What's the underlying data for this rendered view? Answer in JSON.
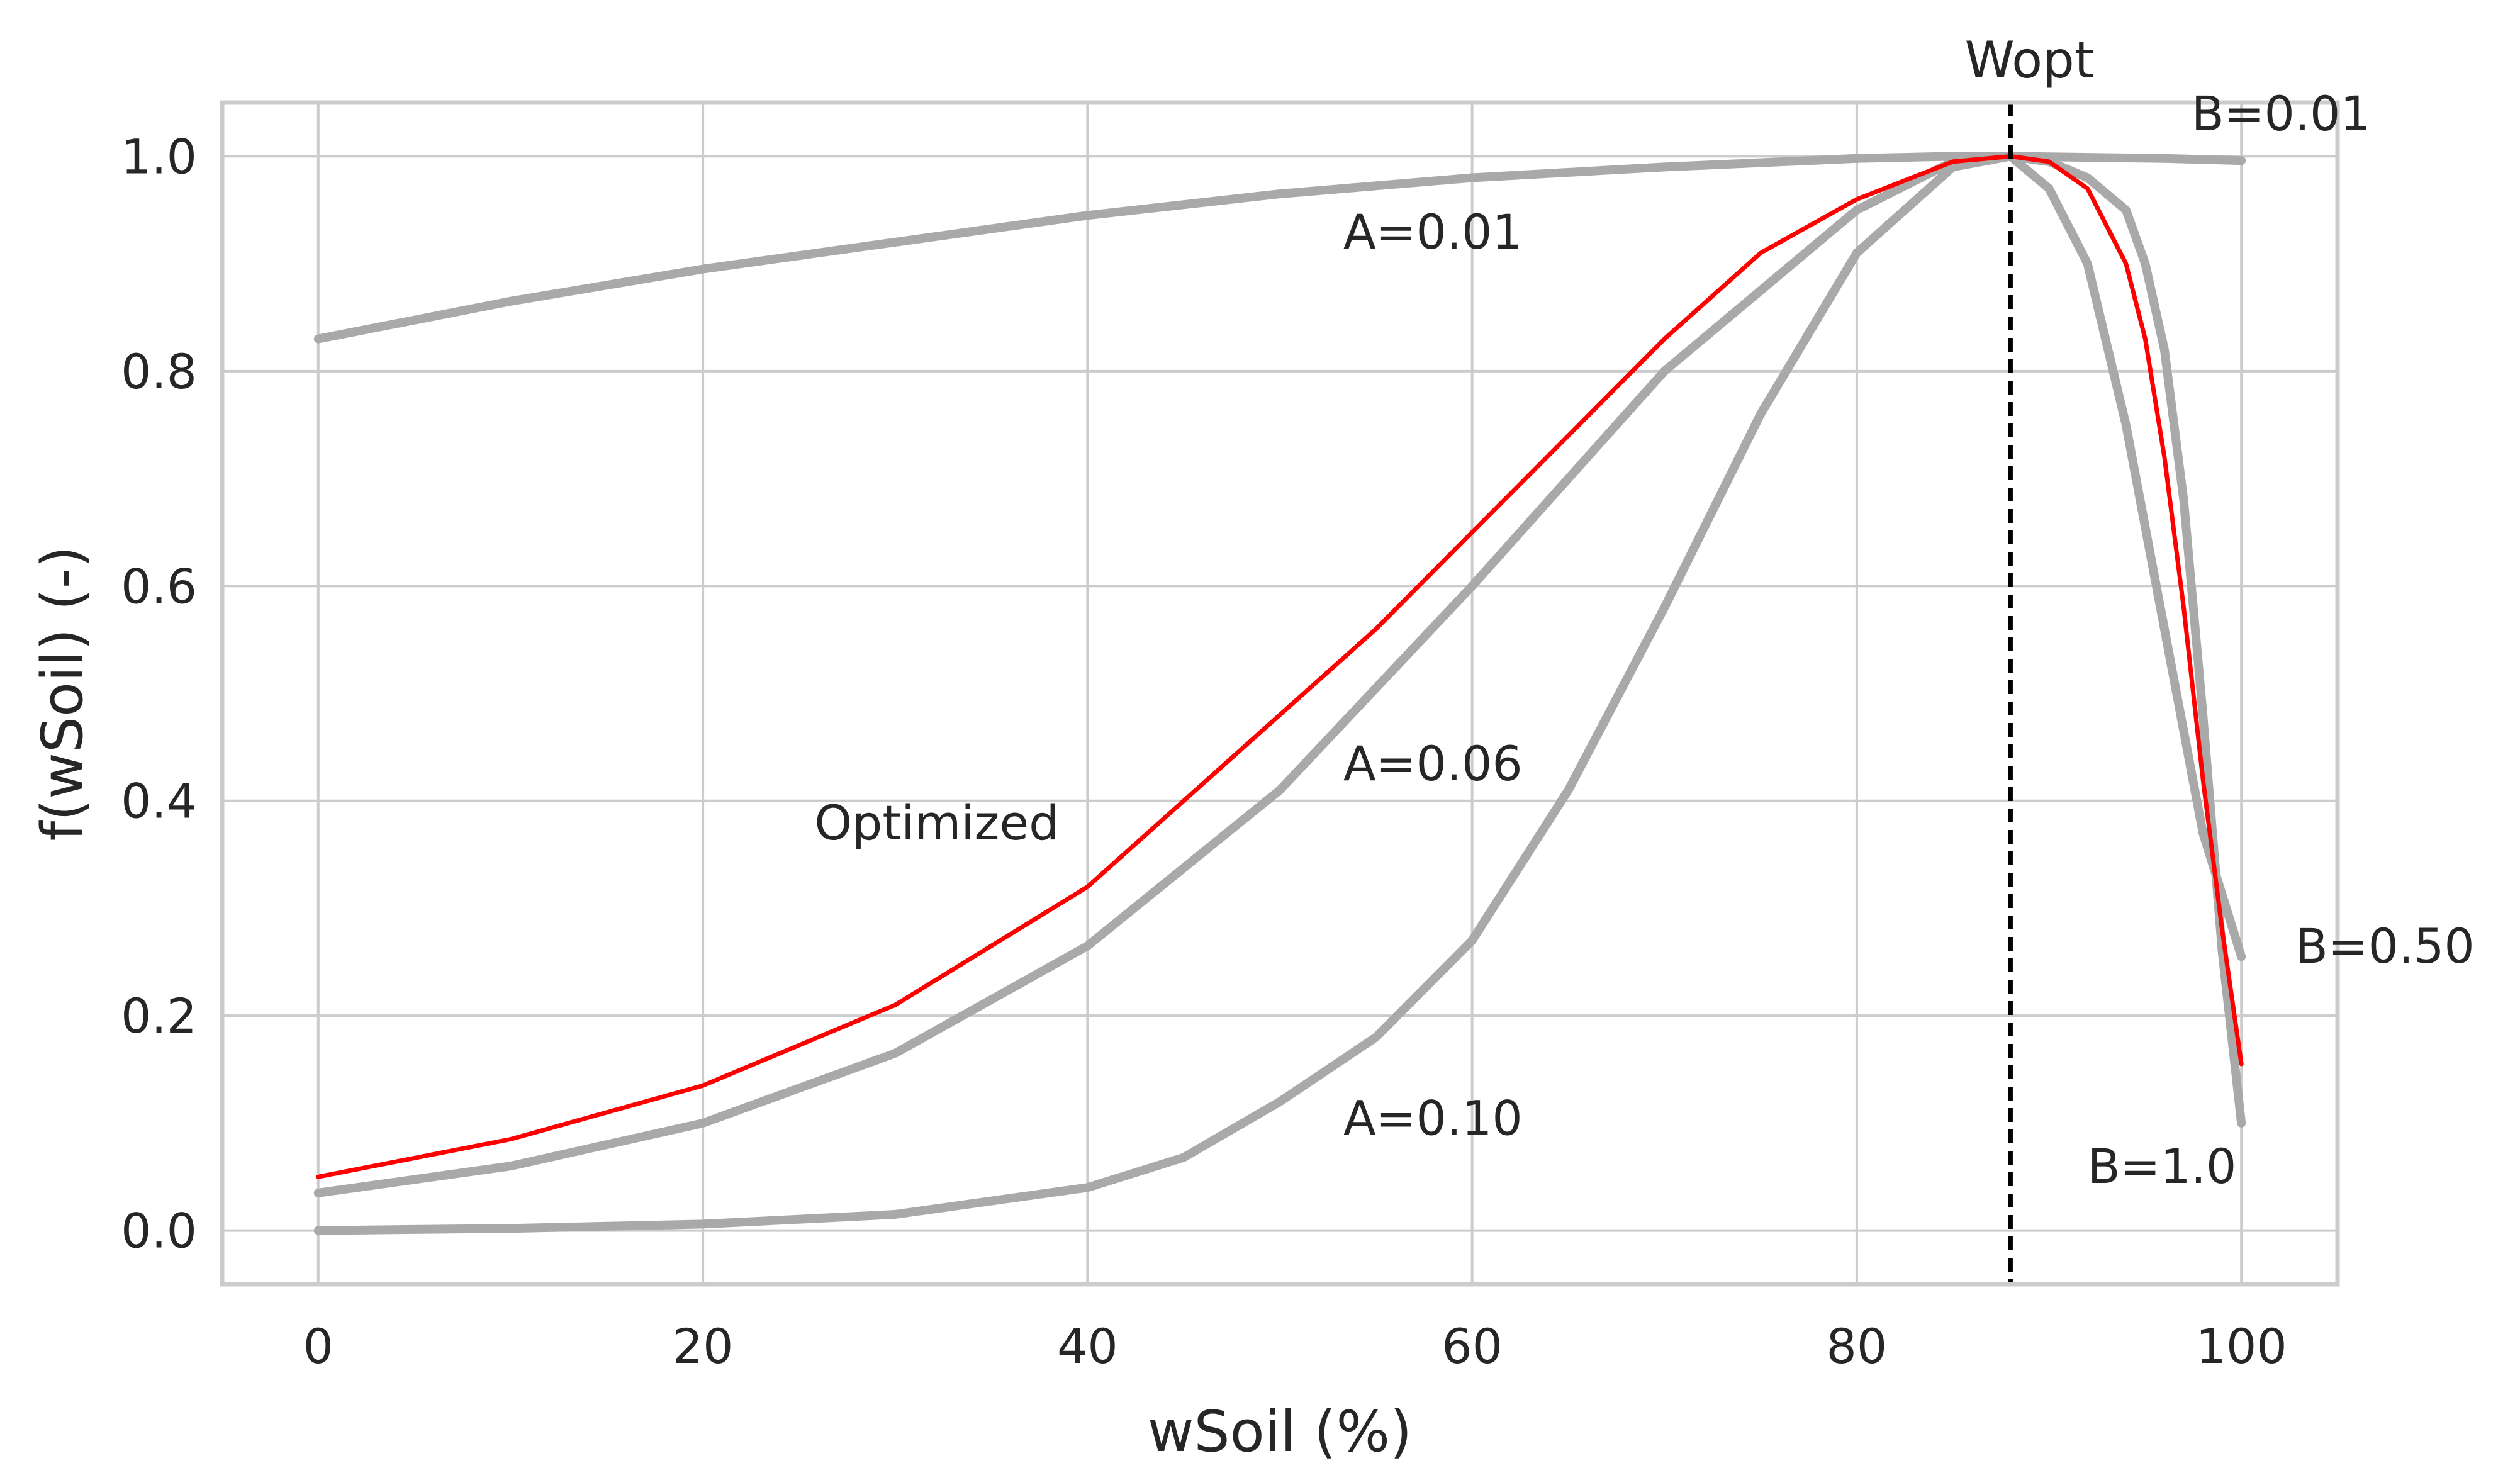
{
  "chart_data": {
    "type": "line",
    "xlabel": "wSoil (%)",
    "ylabel": "f(wSoil) (-)",
    "xlim": [
      -5,
      105
    ],
    "ylim": [
      -0.05,
      1.05
    ],
    "xticks": [
      0,
      20,
      40,
      60,
      80,
      100
    ],
    "yticks": [
      0.0,
      0.2,
      0.4,
      0.6,
      0.8,
      1.0
    ],
    "xtick_labels": [
      "0",
      "20",
      "40",
      "60",
      "80",
      "100"
    ],
    "ytick_labels": [
      "0.0",
      "0.2",
      "0.4",
      "0.6",
      "0.8",
      "1.0"
    ],
    "grid": true,
    "wopt": 88,
    "wopt_label": "Wopt",
    "series": [
      {
        "color": "#a9a9a9",
        "x": [
          0,
          10,
          20,
          30,
          40,
          50,
          60,
          70,
          80,
          85,
          88,
          92,
          96,
          100
        ],
        "y": [
          0.83,
          0.865,
          0.895,
          0.92,
          0.945,
          0.965,
          0.98,
          0.99,
          0.998,
          1.0,
          1.0,
          0.999,
          0.998,
          0.996
        ]
      },
      {
        "color": "#a9a9a9",
        "x": [
          0,
          10,
          20,
          30,
          40,
          50,
          60,
          70,
          80,
          85,
          88,
          90,
          92,
          94,
          96,
          98,
          100
        ],
        "y": [
          0.035,
          0.06,
          0.1,
          0.165,
          0.265,
          0.41,
          0.6,
          0.8,
          0.95,
          0.995,
          1.0,
          0.97,
          0.9,
          0.75,
          0.56,
          0.37,
          0.255
        ]
      },
      {
        "color": "#a9a9a9",
        "x": [
          0,
          10,
          20,
          30,
          40,
          45,
          50,
          55,
          60,
          65,
          70,
          75,
          80,
          85,
          88,
          90,
          92,
          94,
          95,
          96,
          97,
          98,
          99,
          100
        ],
        "y": [
          0.0,
          0.002,
          0.006,
          0.015,
          0.04,
          0.068,
          0.12,
          0.18,
          0.27,
          0.41,
          0.58,
          0.76,
          0.91,
          0.99,
          1.0,
          0.995,
          0.98,
          0.95,
          0.9,
          0.82,
          0.68,
          0.48,
          0.26,
          0.1
        ]
      },
      {
        "color": "#ff0000",
        "x": [
          0,
          10,
          20,
          30,
          40,
          50,
          55,
          60,
          65,
          70,
          75,
          80,
          85,
          88,
          90,
          92,
          94,
          95,
          96,
          97,
          98,
          99,
          100
        ],
        "y": [
          0.05,
          0.085,
          0.135,
          0.21,
          0.32,
          0.48,
          0.56,
          0.65,
          0.74,
          0.83,
          0.91,
          0.96,
          0.995,
          1.0,
          0.995,
          0.97,
          0.9,
          0.83,
          0.72,
          0.58,
          0.42,
          0.28,
          0.155
        ]
      }
    ],
    "annotations": [
      {
        "text": "A=0.01",
        "x": 53.3,
        "y": 0.93,
        "color": "#262626"
      },
      {
        "text": "A=0.06",
        "x": 53.3,
        "y": 0.435,
        "color": "#262626"
      },
      {
        "text": "A=0.10",
        "x": 53.3,
        "y": 0.105,
        "color": "#262626"
      },
      {
        "text": "Optimized",
        "x": 25.8,
        "y": 0.38,
        "color": "#ff0000"
      },
      {
        "text": "B=0.01",
        "x": 97.4,
        "y": 1.04,
        "color": "#262626"
      },
      {
        "text": "B=0.50",
        "x": 102.8,
        "y": 0.265,
        "color": "#262626"
      },
      {
        "text": "B=1.0",
        "x": 92.0,
        "y": 0.06,
        "color": "#262626"
      }
    ]
  }
}
